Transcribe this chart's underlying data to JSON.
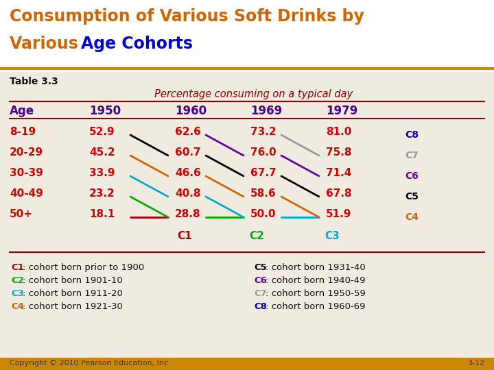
{
  "title_line1": "Consumption of Various Soft Drinks by",
  "title_line2a": "Various ",
  "title_line2b": "Age Cohorts",
  "title_color1": "#CC6600",
  "title_color2": "#0000CC",
  "table_label": "Table 3.3",
  "subtitle": "Percentage consuming on a typical day",
  "subtitle_color": "#8B0000",
  "header_row": [
    "Age",
    "1950",
    "1960",
    "1969",
    "1979"
  ],
  "header_color": "#4B0082",
  "age_groups": [
    "8-19",
    "20-29",
    "30-39",
    "40-49",
    "50+"
  ],
  "data_color": "#CC0000",
  "values": {
    "1950": [
      52.9,
      45.2,
      33.9,
      23.2,
      18.1
    ],
    "1960": [
      62.6,
      60.7,
      46.6,
      40.8,
      28.8
    ],
    "1969": [
      73.2,
      76.0,
      67.7,
      58.6,
      50.0
    ],
    "1979": [
      81.0,
      75.8,
      71.4,
      67.8,
      51.9
    ]
  },
  "cohort_colors": {
    "C1": "#AA0000",
    "C2": "#00AA00",
    "C3": "#00AACC",
    "C4": "#CC6600",
    "C5": "#000000",
    "C6": "#660099",
    "C7": "#999999",
    "C8": "#0000AA"
  },
  "cohort_lines": [
    {
      "label": "C1",
      "color": "#AA0000",
      "pts": [
        [
          "1950",
          4
        ],
        [
          "1960",
          4
        ]
      ]
    },
    {
      "label": "C2",
      "color": "#00AA00",
      "pts": [
        [
          "1950",
          3
        ],
        [
          "1960",
          4
        ],
        [
          "1969",
          4
        ]
      ]
    },
    {
      "label": "C3",
      "color": "#00AACC",
      "pts": [
        [
          "1950",
          2
        ],
        [
          "1960",
          3
        ],
        [
          "1969",
          4
        ],
        [
          "1979",
          4
        ]
      ]
    },
    {
      "label": "C4",
      "color": "#CC6600",
      "pts": [
        [
          "1950",
          1
        ],
        [
          "1960",
          2
        ],
        [
          "1969",
          3
        ],
        [
          "1979",
          4
        ]
      ]
    },
    {
      "label": "C5",
      "color": "#000000",
      "pts": [
        [
          "1950",
          0
        ],
        [
          "1960",
          1
        ],
        [
          "1969",
          2
        ],
        [
          "1979",
          3
        ]
      ]
    },
    {
      "label": "C6",
      "color": "#660099",
      "pts": [
        [
          "1960",
          0
        ],
        [
          "1969",
          1
        ],
        [
          "1979",
          2
        ]
      ]
    },
    {
      "label": "C7",
      "color": "#999999",
      "pts": [
        [
          "1969",
          0
        ],
        [
          "1979",
          1
        ]
      ]
    },
    {
      "label": "C8",
      "color": "#0000AA",
      "pts": [
        [
          "1979",
          0
        ]
      ]
    }
  ],
  "right_cohort_labels": [
    {
      "label": "C8",
      "row": 0,
      "color": "#0000AA"
    },
    {
      "label": "C7",
      "row": 1,
      "color": "#999999"
    },
    {
      "label": "C6",
      "row": 2,
      "color": "#660099"
    },
    {
      "label": "C5",
      "row": 3,
      "color": "#000000"
    },
    {
      "label": "C4",
      "row": 4,
      "color": "#CC6600"
    }
  ],
  "bottom_cohort_labels": [
    {
      "label": "C1",
      "year": "1960",
      "color": "#AA0000"
    },
    {
      "label": "C2",
      "year": "1969",
      "color": "#00AA00"
    },
    {
      "label": "C3",
      "year": "1979",
      "color": "#00AACC"
    }
  ],
  "footnotes_left": [
    {
      "label": "C1",
      "color": "#AA0000",
      "text": ": cohort born prior to 1900"
    },
    {
      "label": "C2",
      "color": "#00AA00",
      "text": ": cohort born 1901-10"
    },
    {
      "label": "C3",
      "color": "#00AACC",
      "text": ": cohort born 1911-20"
    },
    {
      "label": "C4",
      "color": "#CC6600",
      "text": ": cohort born 1921-30"
    }
  ],
  "footnotes_right": [
    {
      "label": "C5",
      "color": "#000000",
      "text": ": cohort born 1931-40"
    },
    {
      "label": "C6",
      "color": "#660099",
      "text": ": cohort born 1940-49"
    },
    {
      "label": "C7",
      "color": "#999999",
      "text": ": cohort born 1950-59"
    },
    {
      "label": "C8",
      "color": "#0000AA",
      "text": ": cohort born 1960-69"
    }
  ],
  "copyright": "Copyright © 2010 Pearson Education, Inc.",
  "page_num": "3-12",
  "title_bg": "#FFFFFF",
  "content_bg": "#F0EBE0",
  "footer_bar_color": "#CC8800",
  "border_color": "#8B0000",
  "gold_rule_color": "#CC8800"
}
